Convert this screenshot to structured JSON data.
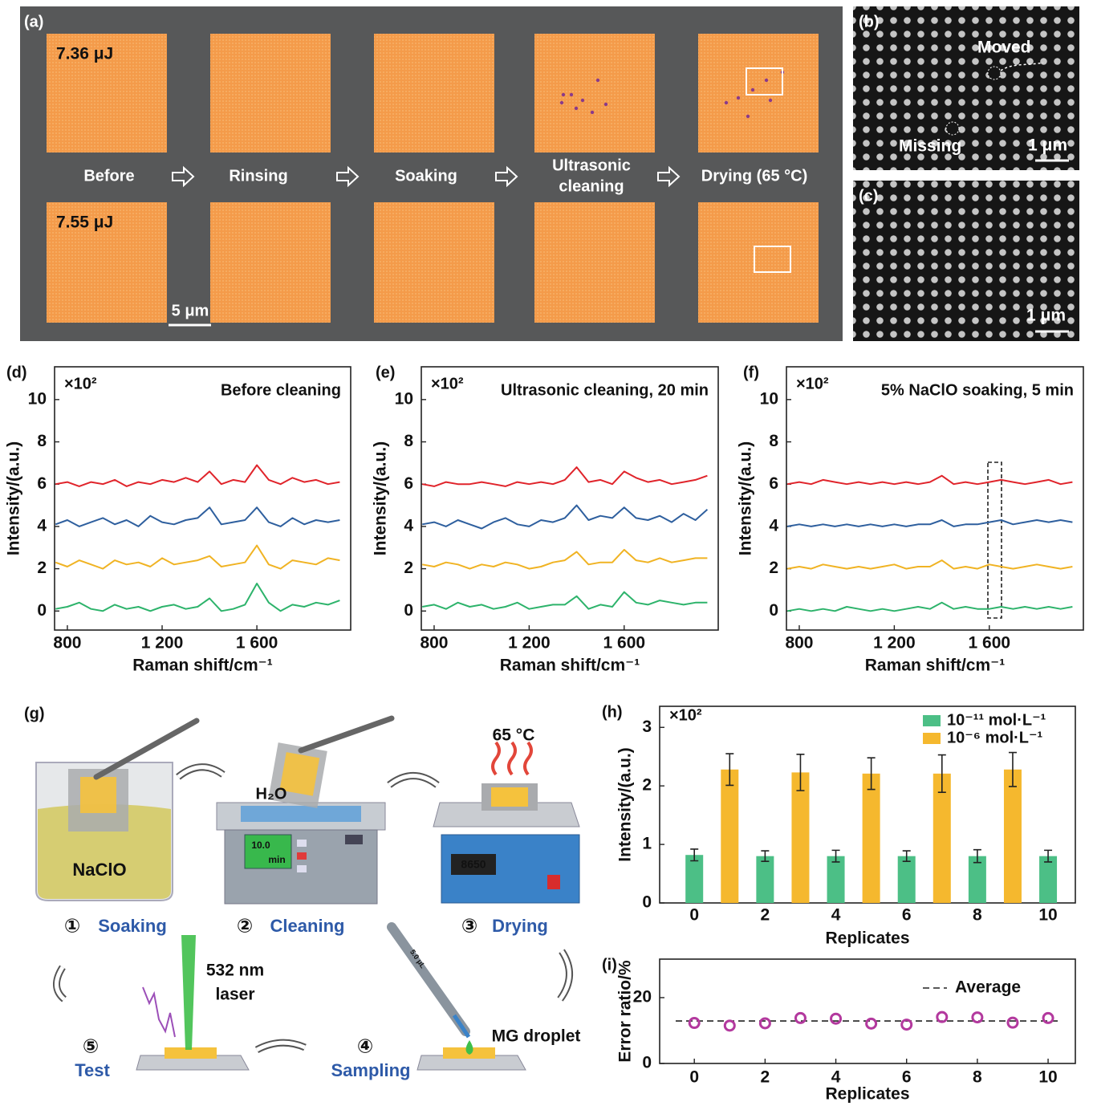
{
  "figure": {
    "a": {
      "panel_label": "(a)",
      "energies": [
        "7.36 μJ",
        "7.55 μJ"
      ],
      "steps": [
        [
          "Before"
        ],
        [
          "Rinsing"
        ],
        [
          "Soaking"
        ],
        [
          "Ultrasonic",
          "cleaning"
        ],
        [
          "Drying (65 °C)"
        ]
      ],
      "scale_bar": "5 μm"
    },
    "b": {
      "panel_label": "(b)",
      "moved": "Moved",
      "missing": "Missing",
      "scale_bar": "1 μm"
    },
    "c": {
      "panel_label": "(c)",
      "scale_bar": "1 μm"
    },
    "g": {
      "panel_label": "(g)",
      "solution": "NaClO",
      "water": "H₂O",
      "timer": [
        "10.0",
        "min"
      ],
      "temperature": "65 °C",
      "display": "8650",
      "volume": "5.0 μL",
      "laser": [
        "532 nm",
        "laser"
      ],
      "droplet": "MG droplet",
      "steps": [
        {
          "number": "①",
          "label": "Soaking"
        },
        {
          "number": "②",
          "label": "Cleaning"
        },
        {
          "number": "③",
          "label": "Drying"
        },
        {
          "number": "④",
          "label": "Sampling"
        },
        {
          "number": "⑤",
          "label": "Test"
        }
      ]
    }
  },
  "chart_data": [
    {
      "type": "line",
      "panel_label": "(d)",
      "title": "Before cleaning",
      "y_multiplier": "×10²",
      "xlabel": "Raman shift/cm⁻¹",
      "ylabel": "Intensity/(a.u.)",
      "xlim": [
        746,
        1996
      ],
      "ylim": [
        -0.9,
        11.55
      ],
      "xticks": [
        800,
        {
          "value": 1200,
          "label": "1 200"
        },
        {
          "value": 1600,
          "label": "1 600"
        }
      ],
      "yticks": [
        0,
        2,
        4,
        6,
        8,
        10
      ],
      "x": [
        750,
        800,
        850,
        900,
        950,
        1000,
        1050,
        1100,
        1150,
        1200,
        1250,
        1300,
        1350,
        1400,
        1450,
        1500,
        1550,
        1600,
        1650,
        1700,
        1750,
        1800,
        1850,
        1900,
        1950
      ],
      "series": [
        {
          "color": "#e0242b",
          "values": [
            6.0,
            6.1,
            5.9,
            6.1,
            6.0,
            6.2,
            5.9,
            6.1,
            6.0,
            6.2,
            6.1,
            6.3,
            6.1,
            6.6,
            6.0,
            6.2,
            6.1,
            6.9,
            6.2,
            6.0,
            6.3,
            6.1,
            6.2,
            6.0,
            6.1
          ]
        },
        {
          "color": "#2e5f9e",
          "values": [
            4.1,
            4.3,
            4.0,
            4.2,
            4.4,
            4.1,
            4.3,
            4.0,
            4.5,
            4.2,
            4.1,
            4.3,
            4.4,
            4.9,
            4.1,
            4.2,
            4.3,
            4.9,
            4.2,
            4.0,
            4.4,
            4.1,
            4.3,
            4.2,
            4.3
          ]
        },
        {
          "color": "#f0b323",
          "values": [
            2.3,
            2.1,
            2.4,
            2.2,
            2.0,
            2.4,
            2.2,
            2.3,
            2.1,
            2.5,
            2.2,
            2.3,
            2.4,
            2.6,
            2.1,
            2.2,
            2.3,
            3.1,
            2.2,
            2.0,
            2.4,
            2.3,
            2.2,
            2.5,
            2.4
          ]
        },
        {
          "color": "#2db36b",
          "values": [
            0.1,
            0.2,
            0.4,
            0.1,
            0.0,
            0.3,
            0.1,
            0.2,
            0.0,
            0.2,
            0.3,
            0.1,
            0.2,
            0.6,
            0.0,
            0.1,
            0.3,
            1.3,
            0.4,
            0.0,
            0.3,
            0.2,
            0.4,
            0.3,
            0.5
          ]
        }
      ]
    },
    {
      "type": "line",
      "panel_label": "(e)",
      "title": "Ultrasonic cleaning, 20 min",
      "y_multiplier": "×10²",
      "xlabel": "Raman shift/cm⁻¹",
      "ylabel": "Intensity/(a.u.)",
      "xlim": [
        746,
        1996
      ],
      "ylim": [
        -0.9,
        11.55
      ],
      "xticks": [
        800,
        {
          "value": 1200,
          "label": "1 200"
        },
        {
          "value": 1600,
          "label": "1 600"
        }
      ],
      "yticks": [
        0,
        2,
        4,
        6,
        8,
        10
      ],
      "x": [
        750,
        800,
        850,
        900,
        950,
        1000,
        1050,
        1100,
        1150,
        1200,
        1250,
        1300,
        1350,
        1400,
        1450,
        1500,
        1550,
        1600,
        1650,
        1700,
        1750,
        1800,
        1850,
        1900,
        1950
      ],
      "series": [
        {
          "color": "#e0242b",
          "values": [
            6.0,
            5.9,
            6.1,
            6.0,
            6.0,
            6.1,
            6.0,
            5.9,
            6.1,
            6.0,
            6.1,
            6.0,
            6.2,
            6.8,
            6.1,
            6.2,
            6.0,
            6.6,
            6.3,
            6.1,
            6.2,
            6.0,
            6.1,
            6.2,
            6.4
          ]
        },
        {
          "color": "#2e5f9e",
          "values": [
            4.1,
            4.2,
            4.0,
            4.3,
            4.1,
            3.9,
            4.2,
            4.4,
            4.1,
            4.0,
            4.3,
            4.2,
            4.4,
            5.0,
            4.3,
            4.5,
            4.4,
            4.9,
            4.4,
            4.3,
            4.5,
            4.2,
            4.6,
            4.3,
            4.8
          ]
        },
        {
          "color": "#f0b323",
          "values": [
            2.2,
            2.1,
            2.3,
            2.2,
            2.0,
            2.2,
            2.1,
            2.3,
            2.2,
            2.0,
            2.1,
            2.3,
            2.4,
            2.8,
            2.2,
            2.3,
            2.3,
            2.9,
            2.4,
            2.3,
            2.5,
            2.3,
            2.4,
            2.5,
            2.5
          ]
        },
        {
          "color": "#2db36b",
          "values": [
            0.2,
            0.3,
            0.1,
            0.4,
            0.2,
            0.3,
            0.1,
            0.2,
            0.4,
            0.1,
            0.2,
            0.3,
            0.3,
            0.7,
            0.1,
            0.3,
            0.2,
            0.9,
            0.4,
            0.3,
            0.5,
            0.4,
            0.3,
            0.4,
            0.4
          ]
        }
      ]
    },
    {
      "type": "line",
      "panel_label": "(f)",
      "title": "5% NaClO soaking, 5 min",
      "y_multiplier": "×10²",
      "xlabel": "Raman shift/cm⁻¹",
      "ylabel": "Intensity/(a.u.)",
      "xlim": [
        746,
        1996
      ],
      "ylim": [
        -0.9,
        11.55
      ],
      "xticks": [
        800,
        {
          "value": 1200,
          "label": "1 200"
        },
        {
          "value": 1600,
          "label": "1 600"
        }
      ],
      "yticks": [
        0,
        2,
        4,
        6,
        8,
        10
      ],
      "x": [
        750,
        800,
        850,
        900,
        950,
        1000,
        1050,
        1100,
        1150,
        1200,
        1250,
        1300,
        1350,
        1400,
        1450,
        1500,
        1550,
        1600,
        1650,
        1700,
        1750,
        1800,
        1850,
        1900,
        1950
      ],
      "series": [
        {
          "color": "#e0242b",
          "values": [
            6.0,
            6.1,
            6.0,
            6.2,
            6.1,
            6.0,
            6.1,
            6.0,
            6.1,
            6.0,
            6.1,
            6.0,
            6.1,
            6.4,
            6.0,
            6.1,
            6.0,
            6.1,
            6.2,
            6.1,
            6.0,
            6.1,
            6.2,
            6.0,
            6.1
          ]
        },
        {
          "color": "#2e5f9e",
          "values": [
            4.0,
            4.1,
            4.0,
            4.1,
            4.0,
            4.1,
            4.0,
            4.1,
            4.0,
            4.1,
            4.0,
            4.1,
            4.1,
            4.3,
            4.0,
            4.1,
            4.1,
            4.2,
            4.3,
            4.1,
            4.2,
            4.3,
            4.2,
            4.3,
            4.2
          ]
        },
        {
          "color": "#f0b323",
          "values": [
            2.0,
            2.1,
            2.0,
            2.2,
            2.1,
            2.0,
            2.1,
            2.0,
            2.1,
            2.2,
            2.0,
            2.1,
            2.1,
            2.4,
            2.0,
            2.1,
            2.0,
            2.2,
            2.1,
            2.0,
            2.1,
            2.2,
            2.1,
            2.0,
            2.1
          ]
        },
        {
          "color": "#2db36b",
          "values": [
            0.0,
            0.1,
            0.0,
            0.1,
            0.0,
            0.2,
            0.1,
            0.0,
            0.1,
            0.0,
            0.1,
            0.2,
            0.1,
            0.4,
            0.1,
            0.2,
            0.1,
            0.1,
            0.2,
            0.1,
            0.2,
            0.1,
            0.2,
            0.1,
            0.2
          ]
        }
      ]
    },
    {
      "type": "bar",
      "panel_label": "(h)",
      "y_multiplier": "×10²",
      "xlabel": "Replicates",
      "ylabel": "Intensity/(a.u.)",
      "xlim": [
        -0.98,
        10.77
      ],
      "ylim": [
        0,
        3.36
      ],
      "xticks": [
        0,
        2,
        4,
        6,
        8,
        10
      ],
      "yticks": [
        0,
        1,
        2,
        3
      ],
      "legend": "upper right",
      "series": [
        {
          "name": "10⁻¹¹ mol·L⁻¹",
          "color": "#4cbf86",
          "x": [
            0,
            2,
            4,
            6,
            8,
            10
          ],
          "values": [
            0.82,
            0.8,
            0.8,
            0.8,
            0.8,
            0.8
          ],
          "errors": [
            0.1,
            0.09,
            0.1,
            0.09,
            0.11,
            0.1
          ]
        },
        {
          "name": "10⁻⁶ mol·L⁻¹",
          "color": "#f5b82e",
          "x": [
            1,
            3,
            5,
            7,
            9
          ],
          "values": [
            2.28,
            2.23,
            2.21,
            2.21,
            2.28
          ],
          "errors": [
            0.27,
            0.31,
            0.27,
            0.32,
            0.29
          ]
        }
      ]
    },
    {
      "type": "scatter",
      "panel_label": "(i)",
      "xlabel": "Replicates",
      "ylabel": "Error ratio/%",
      "xlim": [
        -0.98,
        10.77
      ],
      "ylim": [
        0,
        31.7
      ],
      "xticks": [
        0,
        2,
        4,
        6,
        8,
        10
      ],
      "yticks": [
        0,
        20
      ],
      "legend": "upper right",
      "x": [
        0,
        1,
        2,
        3,
        4,
        5,
        6,
        7,
        8,
        9,
        10
      ],
      "series": [
        {
          "color": "#b3399e",
          "values": [
            12.3,
            11.5,
            12.2,
            13.8,
            13.6,
            12.1,
            11.8,
            14.1,
            14.0,
            12.4,
            13.8
          ]
        }
      ],
      "average": {
        "name": "Average",
        "value": 12.9
      }
    }
  ]
}
